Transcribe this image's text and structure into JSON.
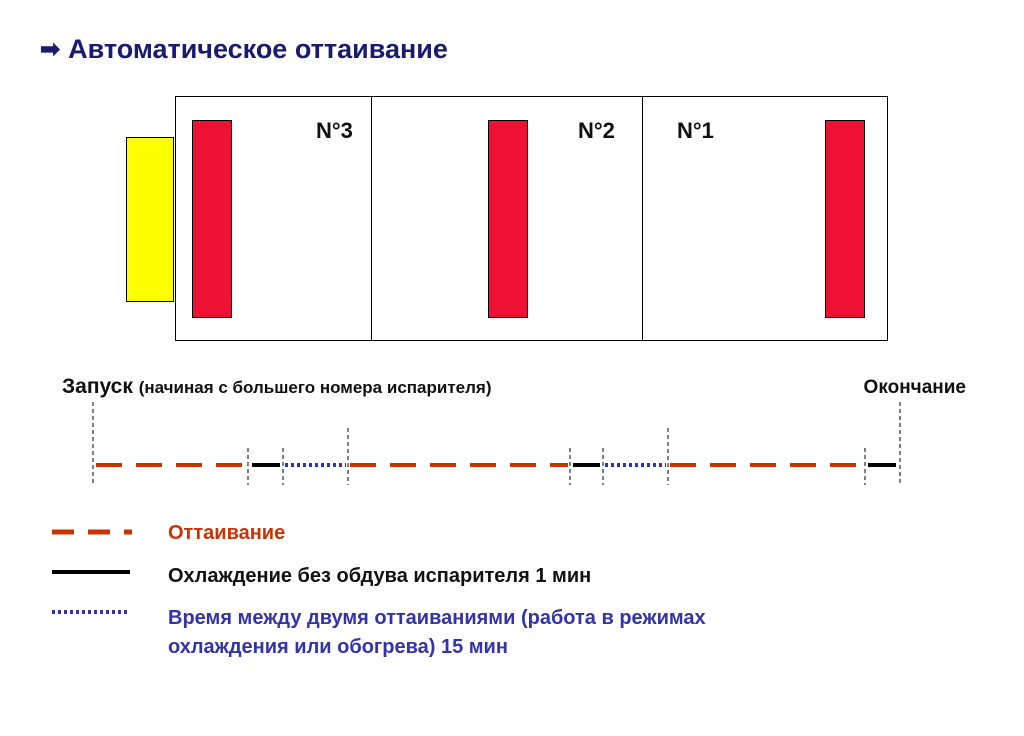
{
  "header": {
    "arrow": "➡",
    "title": "Автоматическое оттаивание"
  },
  "diagram": {
    "evaporators": [
      {
        "number": "N°3"
      },
      {
        "number": "N°2"
      },
      {
        "number": "N°1"
      }
    ],
    "colors": {
      "heater": "#ee1133",
      "yellow_unit": "#ffff00",
      "outline": "#000000"
    }
  },
  "timeline": {
    "start_label": "Запуск",
    "start_note": "(начиная с большего номера испарителя)",
    "end_label": "Окончание",
    "sequence": [
      "defrost",
      "cooling_no_fan",
      "interval",
      "defrost",
      "cooling_no_fan",
      "interval",
      "defrost",
      "cooling_no_fan"
    ]
  },
  "legend": {
    "items": [
      {
        "key": "defrost",
        "label": "Оттаивание",
        "color": "#cc3300",
        "style": "dashed"
      },
      {
        "key": "cooling_no_fan",
        "label": "Охлаждение без обдува испарителя 1 мин",
        "color": "#000000",
        "style": "solid"
      },
      {
        "key": "interval",
        "label_line1": "Время между двумя оттаиваниями (работа в режимах",
        "label_line2": "охлаждения или обогрева) 15 мин",
        "color": "#3333aa",
        "style": "dotted"
      }
    ]
  }
}
